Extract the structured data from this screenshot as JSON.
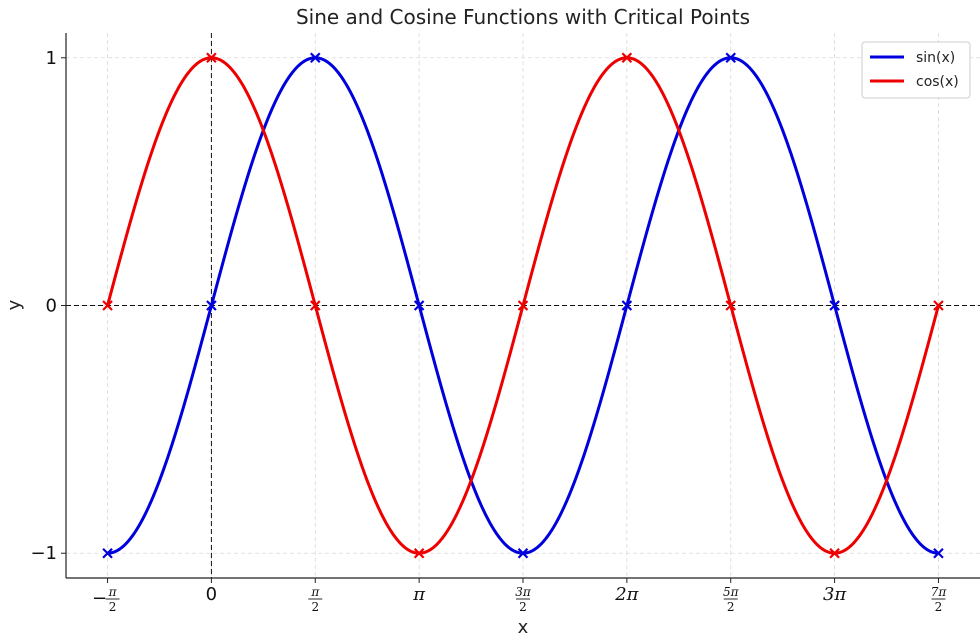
{
  "chart_data": {
    "type": "line",
    "title": "Sine and Cosine Functions with Critical Points",
    "xlabel": "x",
    "ylabel": "y",
    "xlim_pi": [
      -0.7,
      3.7
    ],
    "ylim": [
      -1.1,
      1.1
    ],
    "grid": true,
    "legend_position": "top-right",
    "x_range_pi": [
      -0.5,
      3.5
    ],
    "series": [
      {
        "name": "sin(x)",
        "color": "#0000dd",
        "function": "sin"
      },
      {
        "name": "cos(x)",
        "color": "#ee0000",
        "function": "cos"
      }
    ],
    "critical_points": {
      "sin(x)": [
        {
          "x_pi": -0.5,
          "y": -1
        },
        {
          "x_pi": 0,
          "y": 0
        },
        {
          "x_pi": 0.5,
          "y": 1
        },
        {
          "x_pi": 1,
          "y": 0
        },
        {
          "x_pi": 1.5,
          "y": -1
        },
        {
          "x_pi": 2,
          "y": 0
        },
        {
          "x_pi": 2.5,
          "y": 1
        },
        {
          "x_pi": 3,
          "y": 0
        },
        {
          "x_pi": 3.5,
          "y": -1
        }
      ],
      "cos(x)": [
        {
          "x_pi": -0.5,
          "y": 0
        },
        {
          "x_pi": 0,
          "y": 1
        },
        {
          "x_pi": 0.5,
          "y": 0
        },
        {
          "x_pi": 1,
          "y": -1
        },
        {
          "x_pi": 1.5,
          "y": 0
        },
        {
          "x_pi": 2,
          "y": 1
        },
        {
          "x_pi": 2.5,
          "y": 0
        },
        {
          "x_pi": 3,
          "y": -1
        },
        {
          "x_pi": 3.5,
          "y": 0
        }
      ]
    },
    "x_ticks": [
      {
        "value_pi": -0.5,
        "sign": "−",
        "num": "π",
        "den": "2"
      },
      {
        "value_pi": 0,
        "label": "0"
      },
      {
        "value_pi": 0.5,
        "num": "π",
        "den": "2"
      },
      {
        "value_pi": 1,
        "label": "π"
      },
      {
        "value_pi": 1.5,
        "num": "3π",
        "den": "2"
      },
      {
        "value_pi": 2,
        "label": "2π"
      },
      {
        "value_pi": 2.5,
        "num": "5π",
        "den": "2"
      },
      {
        "value_pi": 3,
        "label": "3π"
      },
      {
        "value_pi": 3.5,
        "num": "7π",
        "den": "2"
      }
    ],
    "y_ticks": [
      {
        "value": -1,
        "label": "−1"
      },
      {
        "value": 0,
        "label": "0"
      },
      {
        "value": 1,
        "label": "1"
      }
    ],
    "reference_lines": {
      "x": 0,
      "y": 0
    }
  }
}
